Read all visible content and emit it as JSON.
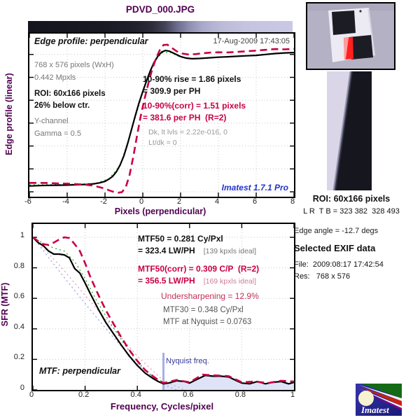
{
  "title": "PDVD_000.JPG",
  "colors": {
    "accent_purple": "#500050",
    "crimson": "#c80045",
    "watermark_blue": "#2233cc",
    "nyquist_line": "#a8aee8",
    "nyquist_text": "#3a3a99",
    "shade": "#dfe3f7",
    "gradient_dark": "#14141f",
    "gradient_light": "#c9c9e6"
  },
  "edge_plot": {
    "heading": "Edge profile: perpendicular",
    "timestamp": "17-Aug-2009 17:43:05",
    "size_line1": "768 x 576 pixels (WxH)",
    "size_line2": "0.442 Mpxls",
    "roi_line1": "ROI: 60x166 pixels",
    "roi_line2": "26% below ctr.",
    "chan_line1": "Y-channel",
    "chan_line2": "Gamma = 0.5",
    "rise1": "10-90% rise = 1.86 pixels",
    "rise2": "= 309.9 per PH",
    "corr1": "10-90%(corr) = 1.51 pixels",
    "corr2": "= 381.6 per PH  (R=2)",
    "lvls1": "Dk, lt lvls = 2.22e-016, 0",
    "lvls2": "Lt/dk = 0",
    "watermark": "Imatest 1.7.1 Pro",
    "xlabel": "Pixels (perpendicular)",
    "ylabel": "Edge profile (linear)"
  },
  "mtf_plot": {
    "line1": "MTF50 = 0.281 Cy/Pxl",
    "line2": "= 323.4 LW/PH",
    "line2_note": "[139 kpxls ideal]",
    "line3": "MTF50(corr) = 0.309 C/P  (R=2)",
    "line4": "= 356.5 LW/PH",
    "line4_note": "[169 kpxls ideal]",
    "undersharpening": "Undersharpening = 12.9%",
    "mtf30": "MTF30 = 0.348 Cy/Pxl",
    "nyquist_mtf": "MTF at Nyquist = 0.0763",
    "corner_label": "MTF: perpendicular",
    "nyquist_label": "Nyquist freq.",
    "xlabel": "Frequency, Cycles/pixel",
    "ylabel": "SFR (MTF)"
  },
  "sidebar": {
    "roi_title": "ROI: 60x166 pixels",
    "roi_coords": "L R  T B = 323 382  328 493",
    "edge_angle": "Edge angle = -12.7 degs",
    "exif_title": "Selected EXIF data",
    "exif_file": "File:  2009:08:17 17:42:54",
    "exif_res": "Res:   768 x 576"
  },
  "logo": {
    "text": "Imatest"
  },
  "chart_data": [
    {
      "type": "line",
      "title": "Edge profile: perpendicular",
      "xlabel": "Pixels (perpendicular)",
      "ylabel": "Edge profile (linear)",
      "xlim": [
        -6,
        8
      ],
      "ylim": [
        0,
        1
      ],
      "grid": true,
      "xticks": [
        -6,
        -4,
        -2,
        0,
        2,
        4,
        6,
        8
      ],
      "xtick_labels": [
        "-6",
        "-4",
        "-2",
        "0",
        "2",
        "4",
        "6",
        "8"
      ],
      "series": [
        {
          "name": "reference-dotted",
          "color": "#33aa33",
          "style": "dotted",
          "width": 1.3,
          "x": [
            -6,
            -4,
            -2.5,
            -1.8,
            -1.2,
            -0.6,
            0,
            0.6,
            1.0,
            1.4,
            2,
            2.6,
            3.5,
            4.5,
            5.5,
            6.5,
            7.5,
            8
          ],
          "y": [
            0.045,
            0.048,
            0.055,
            0.085,
            0.17,
            0.4,
            0.65,
            0.845,
            0.905,
            0.912,
            0.878,
            0.868,
            0.872,
            0.88,
            0.888,
            0.897,
            0.906,
            0.909
          ]
        },
        {
          "name": "edge-profile",
          "color": "#000000",
          "style": "solid",
          "width": 2.2,
          "x": [
            -6,
            -5.5,
            -5,
            -4.5,
            -4,
            -3.5,
            -3,
            -2.6,
            -2.3,
            -2,
            -1.8,
            -1.6,
            -1.4,
            -1.2,
            -1,
            -0.8,
            -0.6,
            -0.4,
            -0.2,
            0,
            0.2,
            0.4,
            0.6,
            0.8,
            1,
            1.2,
            1.4,
            1.7,
            2,
            2.3,
            2.6,
            3,
            3.5,
            4,
            4.5,
            5,
            5.5,
            6,
            6.5,
            7,
            7.5,
            8
          ],
          "y": [
            0.038,
            0.04,
            0.042,
            0.043,
            0.044,
            0.046,
            0.048,
            0.052,
            0.058,
            0.068,
            0.082,
            0.1,
            0.13,
            0.175,
            0.235,
            0.315,
            0.405,
            0.495,
            0.58,
            0.655,
            0.725,
            0.79,
            0.845,
            0.885,
            0.912,
            0.922,
            0.918,
            0.9,
            0.882,
            0.872,
            0.868,
            0.87,
            0.874,
            0.878,
            0.881,
            0.884,
            0.887,
            0.89,
            0.896,
            0.902,
            0.906,
            0.908
          ]
        },
        {
          "name": "edge-profile-corrected",
          "color": "#c80045",
          "style": "dashed",
          "width": 2.6,
          "x": [
            -6,
            -5.5,
            -5,
            -4.5,
            -4,
            -3.5,
            -3,
            -2.7,
            -2.4,
            -2.1,
            -1.9,
            -1.7,
            -1.5,
            -1.3,
            -1.1,
            -0.9,
            -0.7,
            -0.5,
            -0.3,
            -0.1,
            0.1,
            0.3,
            0.5,
            0.7,
            0.9,
            1.1,
            1.3,
            1.5,
            1.8,
            2.1,
            2.4,
            2.8,
            3.2,
            3.6,
            4,
            4.5,
            5,
            5.5,
            6,
            6.5,
            7,
            7.5,
            8
          ],
          "y": [
            0.058,
            0.058,
            0.057,
            0.055,
            0.053,
            0.05,
            0.046,
            0.041,
            0.034,
            0.024,
            0.015,
            0.006,
            -0.002,
            -0.006,
            -0.002,
            0.03,
            0.11,
            0.23,
            0.37,
            0.5,
            0.61,
            0.71,
            0.8,
            0.87,
            0.925,
            0.958,
            0.96,
            0.942,
            0.916,
            0.902,
            0.896,
            0.898,
            0.904,
            0.908,
            0.91,
            0.909,
            0.913,
            0.917,
            0.921,
            0.926,
            0.931,
            0.929,
            0.932
          ]
        }
      ]
    },
    {
      "type": "line",
      "title": "MTF: perpendicular",
      "xlabel": "Frequency, Cycles/pixel",
      "ylabel": "SFR (MTF)",
      "xlim": [
        0,
        1
      ],
      "ylim": [
        0,
        1.09
      ],
      "grid": true,
      "xticks": [
        0,
        0.2,
        0.4,
        0.6,
        0.8,
        1
      ],
      "xtick_labels": [
        "0",
        "0.2",
        "0.4",
        "0.6",
        "0.8",
        "1"
      ],
      "yticks": [
        0,
        0.2,
        0.4,
        0.6,
        0.8,
        1
      ],
      "ytick_labels": [
        "0",
        "0.2",
        "0.4",
        "0.6",
        "0.8",
        "1"
      ],
      "nyquist_x": 0.5,
      "mtf50": 0.281,
      "mtf50_corr": 0.309,
      "mtf30": 0.348,
      "mtf_at_nyquist": 0.0763,
      "series": [
        {
          "name": "ideal-blue-dotted",
          "color": "#9aa4e0",
          "style": "dotted",
          "width": 1.3,
          "x": [
            0,
            0.1,
            0.2,
            0.3,
            0.4,
            0.5,
            0.55
          ],
          "y": [
            1.0,
            0.78,
            0.565,
            0.36,
            0.17,
            0.035,
            0.0
          ]
        },
        {
          "name": "ideal-pink-dotted",
          "color": "#e0a0b8",
          "style": "dotted",
          "width": 1.3,
          "x": [
            0,
            0.1,
            0.2,
            0.3,
            0.4,
            0.5,
            0.58
          ],
          "y": [
            1.0,
            0.82,
            0.62,
            0.42,
            0.22,
            0.06,
            0.0
          ]
        },
        {
          "name": "standardized-green-dotted",
          "color": "#33aa33",
          "style": "dotted",
          "width": 1.3,
          "x": [
            0,
            0.04,
            0.08,
            0.12,
            0.16,
            0.2,
            0.25,
            0.3,
            0.35,
            0.4,
            0.45,
            0.5
          ],
          "y": [
            1.0,
            0.96,
            0.93,
            0.91,
            0.84,
            0.73,
            0.565,
            0.43,
            0.3,
            0.185,
            0.1,
            0.05
          ]
        },
        {
          "name": "MTF",
          "color": "#000000",
          "style": "solid",
          "width": 2.2,
          "x": [
            0,
            0.02,
            0.04,
            0.06,
            0.08,
            0.1,
            0.12,
            0.14,
            0.16,
            0.18,
            0.2,
            0.22,
            0.25,
            0.28,
            0.31,
            0.34,
            0.37,
            0.4,
            0.43,
            0.46,
            0.48,
            0.5,
            0.52,
            0.55,
            0.58,
            0.6,
            0.63,
            0.66,
            0.69,
            0.72,
            0.75,
            0.78,
            0.8,
            0.83,
            0.86,
            0.89,
            0.92,
            0.95,
            0.98,
            1.0
          ],
          "y": [
            1.0,
            0.965,
            0.945,
            0.91,
            0.89,
            0.89,
            0.885,
            0.865,
            0.795,
            0.765,
            0.7,
            0.63,
            0.53,
            0.44,
            0.365,
            0.29,
            0.22,
            0.16,
            0.11,
            0.075,
            0.055,
            0.04,
            0.045,
            0.06,
            0.055,
            0.045,
            0.07,
            0.095,
            0.09,
            0.09,
            0.085,
            0.06,
            0.045,
            0.04,
            0.055,
            0.04,
            0.05,
            0.055,
            0.04,
            0.05
          ]
        },
        {
          "name": "MTF-corrected",
          "color": "#c80045",
          "style": "dashed",
          "width": 2.6,
          "x": [
            0,
            0.02,
            0.04,
            0.06,
            0.08,
            0.1,
            0.12,
            0.14,
            0.16,
            0.18,
            0.2,
            0.22,
            0.25,
            0.28,
            0.31,
            0.34,
            0.37,
            0.4,
            0.43,
            0.46,
            0.48,
            0.5,
            0.55,
            0.6,
            0.65,
            0.7,
            0.75,
            0.8,
            0.85,
            0.9,
            0.95,
            1.0
          ],
          "y": [
            1.0,
            0.975,
            0.955,
            0.95,
            0.965,
            0.985,
            1.0,
            0.995,
            0.955,
            0.91,
            0.83,
            0.74,
            0.625,
            0.52,
            0.43,
            0.34,
            0.26,
            0.19,
            0.13,
            0.09,
            0.065,
            0.045,
            0.065,
            0.05,
            0.1,
            0.095,
            0.09,
            0.05,
            0.055,
            0.045,
            0.06,
            0.055
          ]
        }
      ]
    }
  ]
}
